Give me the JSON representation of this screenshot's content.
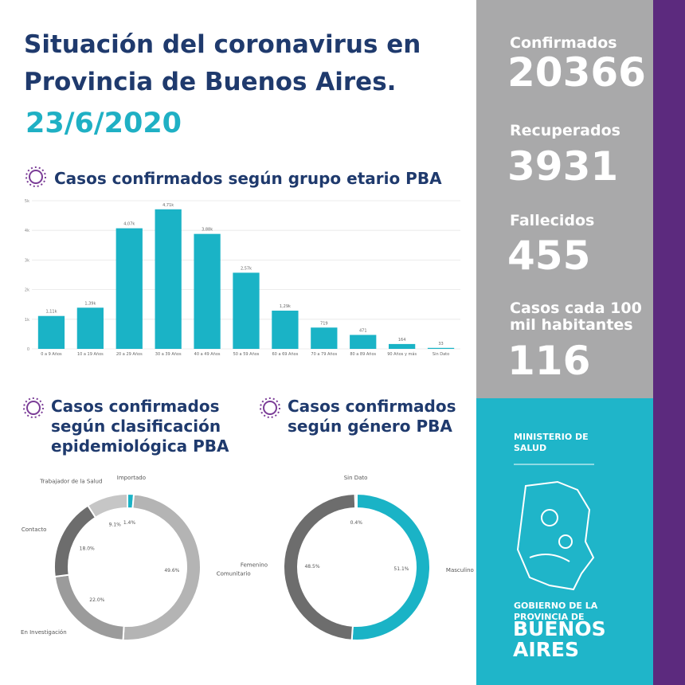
{
  "header": {
    "title_lines": [
      "Situación del coronavirus en",
      "Provincia de Buenos Aires."
    ],
    "date": "23/6/2020"
  },
  "stats": [
    {
      "label_lines": [
        "Confirmados"
      ],
      "value": 20366
    },
    {
      "label_lines": [
        "Recuperados"
      ],
      "value": 3931
    },
    {
      "label_lines": [
        "Fallecidos"
      ],
      "value": 455
    },
    {
      "label_lines": [
        "Casos cada 100",
        "mil habitantes"
      ],
      "value": 116
    }
  ],
  "chart_data": [
    {
      "type": "bar",
      "title_lines": [
        "Casos confirmados según grupo etario PBA"
      ],
      "categories": [
        "0 a 9 Años",
        "10 a 19 Años",
        "20 a 29 Años",
        "30 a 39 Años",
        "40 a 49 Años",
        "50 a 59 Años",
        "60 a 69 Años",
        "70 a 79 Años",
        "80 a 89 Años",
        "90 Años y más",
        "Sin Dato"
      ],
      "values": [
        1110,
        1390,
        4070,
        4710,
        3880,
        2570,
        1290,
        719,
        471,
        164,
        33
      ],
      "value_labels": [
        "1,11k",
        "1,39k",
        "4,07k",
        "4,71k",
        "3,88k",
        "2,57k",
        "1,29k",
        "719",
        "471",
        "164",
        "33"
      ],
      "color": "#1ab3c6",
      "ylim": [
        0,
        5000
      ],
      "yticks": [
        0,
        {
          "value": 1000,
          "label": "1k"
        },
        {
          "value": 2000,
          "label": "2k"
        },
        {
          "value": 3000,
          "label": "3k"
        },
        {
          "value": 4000,
          "label": "4k"
        },
        {
          "value": 5000,
          "label": "5k"
        }
      ],
      "grid": true
    },
    {
      "type": "pie",
      "donut": true,
      "title_lines": [
        "Casos confirmados",
        "según clasificación",
        "epidemiológica PBA"
      ],
      "categories": [
        "Importado",
        "Comunitario",
        "En Investigación",
        "Contacto",
        "Trabajador de la Salud"
      ],
      "values": [
        1.4,
        49.6,
        22.0,
        18.0,
        9.1
      ],
      "value_labels": [
        "1.4%",
        "49.6%",
        "22.0%",
        "18.0%",
        "9.1%"
      ],
      "colors": [
        "#1ab3c6",
        "#b4b4b4",
        "#9b9b9b",
        "#6d6d6d",
        "#c6c6c6"
      ]
    },
    {
      "type": "pie",
      "donut": true,
      "title_lines": [
        "Casos confirmados",
        "según género PBA"
      ],
      "categories": [
        "Masculino",
        "Femenino",
        "Sin Dato"
      ],
      "values": [
        51.1,
        48.5,
        0.4
      ],
      "value_labels": [
        "51.1%",
        "48.5%",
        "0.4%"
      ],
      "colors": [
        "#1ab3c6",
        "#6d6d6d",
        "#b4b4b4"
      ]
    }
  ],
  "footer": {
    "ministry_lines": [
      "MINISTERIO DE",
      "SALUD"
    ],
    "government_lines": [
      "GOBIERNO DE LA",
      "PROVINCIA DE"
    ],
    "province_lines": [
      "BUENOS",
      "AIRES"
    ]
  }
}
